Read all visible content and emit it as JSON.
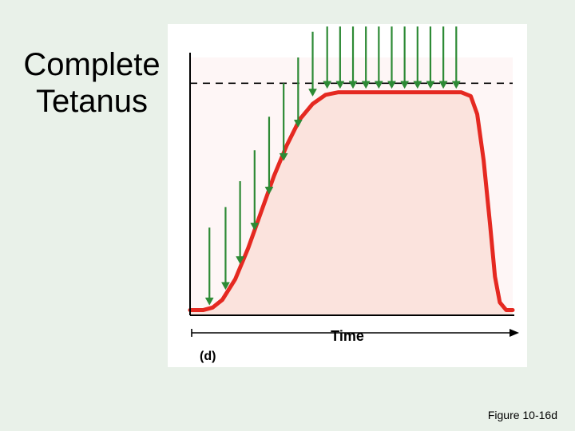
{
  "page": {
    "background_color": "#e9f1e9"
  },
  "title": {
    "line1": "Complete",
    "line2": "Tetanus"
  },
  "caption": "Figure 10-16d",
  "chart": {
    "type": "line",
    "panel_bg": "#ffffff",
    "plot_bg": "#fef6f6",
    "fill_color": "#fbe3dd",
    "curve_color": "#e52921",
    "curve_width": 5,
    "axis_color": "#000000",
    "dashed_color": "#000000",
    "arrow_color": "#2d8a35",
    "arrow_width": 2.2,
    "x_label": "Time",
    "subplot_label": "(d)",
    "plateau_y": 0.86,
    "dashed_y": 0.9,
    "curve_points": [
      {
        "x": 0.0,
        "y": 0.02
      },
      {
        "x": 0.04,
        "y": 0.02
      },
      {
        "x": 0.07,
        "y": 0.03
      },
      {
        "x": 0.1,
        "y": 0.06
      },
      {
        "x": 0.14,
        "y": 0.14
      },
      {
        "x": 0.18,
        "y": 0.26
      },
      {
        "x": 0.22,
        "y": 0.4
      },
      {
        "x": 0.26,
        "y": 0.54
      },
      {
        "x": 0.3,
        "y": 0.66
      },
      {
        "x": 0.34,
        "y": 0.76
      },
      {
        "x": 0.38,
        "y": 0.82
      },
      {
        "x": 0.42,
        "y": 0.855
      },
      {
        "x": 0.46,
        "y": 0.865
      },
      {
        "x": 0.55,
        "y": 0.865
      },
      {
        "x": 0.65,
        "y": 0.865
      },
      {
        "x": 0.75,
        "y": 0.865
      },
      {
        "x": 0.84,
        "y": 0.865
      },
      {
        "x": 0.87,
        "y": 0.85
      },
      {
        "x": 0.89,
        "y": 0.78
      },
      {
        "x": 0.91,
        "y": 0.6
      },
      {
        "x": 0.93,
        "y": 0.35
      },
      {
        "x": 0.945,
        "y": 0.15
      },
      {
        "x": 0.96,
        "y": 0.05
      },
      {
        "x": 0.98,
        "y": 0.02
      },
      {
        "x": 1.0,
        "y": 0.02
      }
    ],
    "arrows": [
      {
        "x": 0.06,
        "tip_y": 0.04,
        "tail_y": 0.34
      },
      {
        "x": 0.11,
        "tip_y": 0.1,
        "tail_y": 0.42
      },
      {
        "x": 0.155,
        "tip_y": 0.2,
        "tail_y": 0.52
      },
      {
        "x": 0.2,
        "tip_y": 0.33,
        "tail_y": 0.64
      },
      {
        "x": 0.245,
        "tip_y": 0.47,
        "tail_y": 0.77
      },
      {
        "x": 0.29,
        "tip_y": 0.6,
        "tail_y": 0.9
      },
      {
        "x": 0.335,
        "tip_y": 0.73,
        "tail_y": 1.0
      },
      {
        "x": 0.38,
        "tip_y": 0.85,
        "tail_y": 1.1
      },
      {
        "x": 0.425,
        "tip_y": 0.88,
        "tail_y": 1.12
      },
      {
        "x": 0.465,
        "tip_y": 0.88,
        "tail_y": 1.12
      },
      {
        "x": 0.505,
        "tip_y": 0.88,
        "tail_y": 1.12
      },
      {
        "x": 0.545,
        "tip_y": 0.88,
        "tail_y": 1.12
      },
      {
        "x": 0.585,
        "tip_y": 0.88,
        "tail_y": 1.12
      },
      {
        "x": 0.625,
        "tip_y": 0.88,
        "tail_y": 1.12
      },
      {
        "x": 0.665,
        "tip_y": 0.88,
        "tail_y": 1.12
      },
      {
        "x": 0.705,
        "tip_y": 0.88,
        "tail_y": 1.12
      },
      {
        "x": 0.745,
        "tip_y": 0.88,
        "tail_y": 1.12
      },
      {
        "x": 0.785,
        "tip_y": 0.88,
        "tail_y": 1.12
      },
      {
        "x": 0.825,
        "tip_y": 0.88,
        "tail_y": 1.12
      }
    ]
  }
}
